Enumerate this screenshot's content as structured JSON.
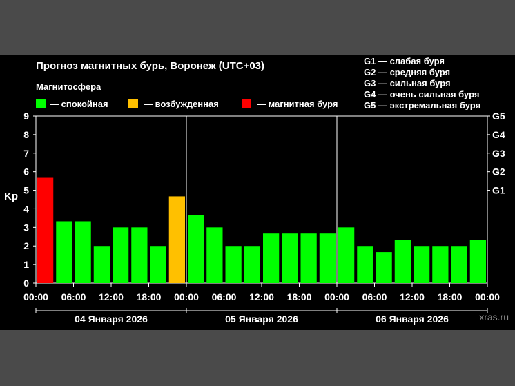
{
  "chart_data": {
    "type": "bar",
    "title": "Прогноз магнитных бурь, Воронеж (UTC+03)",
    "legend_title": "Магнитосфера",
    "legend": [
      {
        "label": "— спокойная",
        "color": "#00ff00"
      },
      {
        "label": "— возбужденная",
        "color": "#ffc000"
      },
      {
        "label": "— магнитная буря",
        "color": "#ff0000"
      }
    ],
    "g_scale": [
      "G1 — слабая буря",
      "G2 — средняя буря",
      "G3 — сильная буря",
      "G4 — очень сильная буря",
      "G5 — экстремальная буря"
    ],
    "ylabel": "Kp",
    "ylim": [
      0,
      9
    ],
    "y_ticks": [
      "0",
      "1",
      "2",
      "3",
      "4",
      "5",
      "6",
      "7",
      "8",
      "9"
    ],
    "right_ticks": [
      {
        "label": "G1",
        "value": 5
      },
      {
        "label": "G2",
        "value": 6
      },
      {
        "label": "G3",
        "value": 7
      },
      {
        "label": "G4",
        "value": 8
      },
      {
        "label": "G5",
        "value": 9
      }
    ],
    "x_ticks": [
      "00:00",
      "06:00",
      "12:00",
      "18:00",
      "00:00",
      "06:00",
      "12:00",
      "18:00",
      "00:00",
      "06:00",
      "12:00",
      "18:00",
      "00:00"
    ],
    "days": [
      "04 Января 2026",
      "05 Января 2026",
      "06 Января 2026"
    ],
    "values": [
      5.67,
      3.33,
      3.33,
      2.0,
      3.0,
      3.0,
      2.0,
      4.67,
      3.67,
      3.0,
      2.0,
      2.0,
      2.67,
      2.67,
      2.67,
      2.67,
      3.0,
      2.0,
      1.67,
      2.33,
      2.0,
      2.0,
      2.0,
      2.33
    ],
    "levels": [
      "storm",
      "calm",
      "calm",
      "calm",
      "calm",
      "calm",
      "calm",
      "excited",
      "calm",
      "calm",
      "calm",
      "calm",
      "calm",
      "calm",
      "calm",
      "calm",
      "calm",
      "calm",
      "calm",
      "calm",
      "calm",
      "calm",
      "calm",
      "calm"
    ],
    "level_colors": {
      "calm": "#00ff00",
      "excited": "#ffc000",
      "storm": "#ff0000"
    },
    "grid": false
  },
  "watermark": "xras.ru"
}
